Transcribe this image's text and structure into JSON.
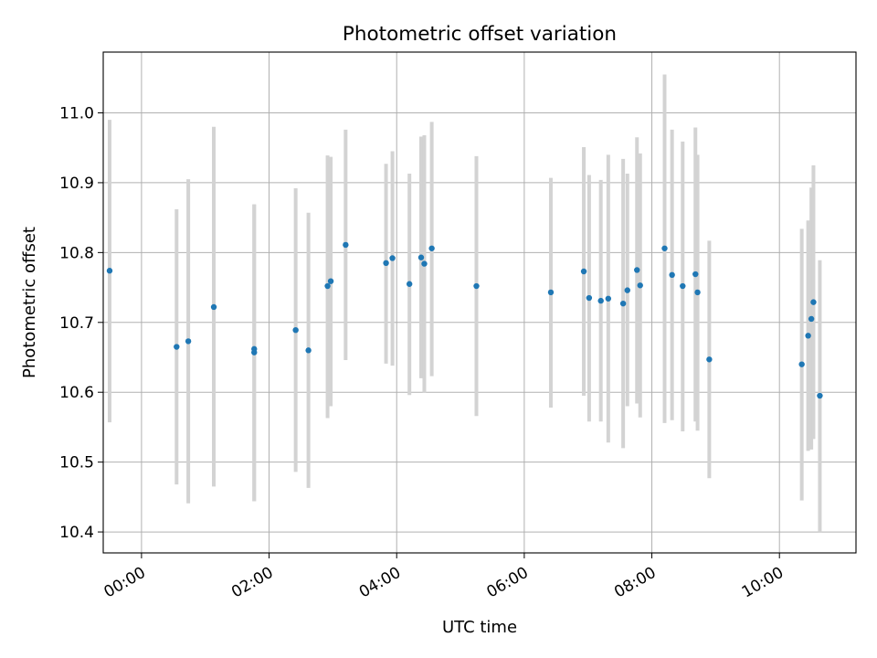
{
  "chart_data": {
    "type": "scatter",
    "title": "Photometric offset variation",
    "xlabel": "UTC time",
    "ylabel": "Photometric offset",
    "x_unit": "hours",
    "xlim": [
      "-00:36",
      "11:12"
    ],
    "ylim": [
      10.37,
      11.087
    ],
    "x_ticks": [
      "00:00",
      "02:00",
      "04:00",
      "06:00",
      "08:00",
      "10:00"
    ],
    "y_ticks": [
      "10.4",
      "10.5",
      "10.6",
      "10.7",
      "10.8",
      "10.9",
      "11.0"
    ],
    "grid": true,
    "legend": "none",
    "colors": {
      "marker": "#1f77b4",
      "errorbar": "#d3d3d3",
      "grid": "#b0b0b0"
    },
    "points": [
      {
        "x": "23:30",
        "y": 10.774,
        "low": 10.557,
        "high": 10.99
      },
      {
        "x": "00:33",
        "y": 10.665,
        "low": 10.468,
        "high": 10.862
      },
      {
        "x": "00:44",
        "y": 10.673,
        "low": 10.441,
        "high": 10.905
      },
      {
        "x": "01:08",
        "y": 10.722,
        "low": 10.465,
        "high": 10.98
      },
      {
        "x": "01:46",
        "y": 10.662,
        "low": 10.444,
        "high": 10.869
      },
      {
        "x": "01:46",
        "y": 10.657,
        "low": 10.444,
        "high": 10.869
      },
      {
        "x": "02:25",
        "y": 10.689,
        "low": 10.486,
        "high": 10.892
      },
      {
        "x": "02:37",
        "y": 10.66,
        "low": 10.463,
        "high": 10.857
      },
      {
        "x": "02:55",
        "y": 10.752,
        "low": 10.563,
        "high": 10.939
      },
      {
        "x": "02:58",
        "y": 10.759,
        "low": 10.58,
        "high": 10.937
      },
      {
        "x": "03:12",
        "y": 10.811,
        "low": 10.646,
        "high": 10.976
      },
      {
        "x": "03:50",
        "y": 10.785,
        "low": 10.641,
        "high": 10.927
      },
      {
        "x": "03:56",
        "y": 10.792,
        "low": 10.638,
        "high": 10.945
      },
      {
        "x": "04:12",
        "y": 10.755,
        "low": 10.596,
        "high": 10.913
      },
      {
        "x": "04:23",
        "y": 10.793,
        "low": 10.62,
        "high": 10.966
      },
      {
        "x": "04:26",
        "y": 10.784,
        "low": 10.599,
        "high": 10.968
      },
      {
        "x": "04:33",
        "y": 10.806,
        "low": 10.623,
        "high": 10.987
      },
      {
        "x": "05:15",
        "y": 10.752,
        "low": 10.566,
        "high": 10.938
      },
      {
        "x": "06:25",
        "y": 10.743,
        "low": 10.578,
        "high": 10.907
      },
      {
        "x": "06:56",
        "y": 10.773,
        "low": 10.595,
        "high": 10.951
      },
      {
        "x": "07:01",
        "y": 10.735,
        "low": 10.558,
        "high": 10.911
      },
      {
        "x": "07:12",
        "y": 10.731,
        "low": 10.558,
        "high": 10.904
      },
      {
        "x": "07:19",
        "y": 10.734,
        "low": 10.528,
        "high": 10.94
      },
      {
        "x": "07:33",
        "y": 10.727,
        "low": 10.52,
        "high": 10.934
      },
      {
        "x": "07:37",
        "y": 10.746,
        "low": 10.58,
        "high": 10.913
      },
      {
        "x": "07:46",
        "y": 10.775,
        "low": 10.584,
        "high": 10.965
      },
      {
        "x": "07:49",
        "y": 10.753,
        "low": 10.564,
        "high": 10.942
      },
      {
        "x": "08:12",
        "y": 10.806,
        "low": 10.556,
        "high": 11.055
      },
      {
        "x": "08:19",
        "y": 10.768,
        "low": 10.56,
        "high": 10.976
      },
      {
        "x": "08:29",
        "y": 10.752,
        "low": 10.544,
        "high": 10.959
      },
      {
        "x": "08:41",
        "y": 10.769,
        "low": 10.558,
        "high": 10.979
      },
      {
        "x": "08:43",
        "y": 10.743,
        "low": 10.545,
        "high": 10.94
      },
      {
        "x": "08:54",
        "y": 10.647,
        "low": 10.477,
        "high": 10.817
      },
      {
        "x": "10:21",
        "y": 10.64,
        "low": 10.445,
        "high": 10.834
      },
      {
        "x": "10:27",
        "y": 10.681,
        "low": 10.516,
        "high": 10.846
      },
      {
        "x": "10:30",
        "y": 10.705,
        "low": 10.518,
        "high": 10.893
      },
      {
        "x": "10:32",
        "y": 10.729,
        "low": 10.533,
        "high": 10.925
      },
      {
        "x": "10:38",
        "y": 10.595,
        "low": 10.4,
        "high": 10.789
      }
    ]
  }
}
